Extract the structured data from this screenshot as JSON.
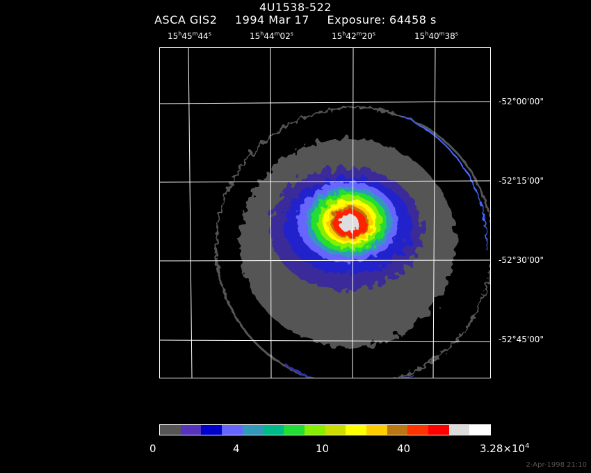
{
  "header": {
    "source": "4U1538-522",
    "instrument": "ASCA GIS2",
    "date": "1994 Mar 17",
    "exposure": "Exposure: 64458 s"
  },
  "ra_labels": [
    {
      "h": "15",
      "m": "45",
      "s": "44"
    },
    {
      "h": "15",
      "m": "44",
      "s": "02"
    },
    {
      "h": "15",
      "m": "42",
      "s": "20"
    },
    {
      "h": "15",
      "m": "40",
      "s": "38"
    }
  ],
  "dec_labels": [
    "-52°00'00\"",
    "-52°15'00\"",
    "-52°30'00\"",
    "-52°45'00\""
  ],
  "colorbar": {
    "colors": [
      "#555555",
      "#5533bb",
      "#0000cc",
      "#6666ff",
      "#3399bb",
      "#00bb88",
      "#22dd33",
      "#88ee00",
      "#ccdd00",
      "#ffff00",
      "#ffcc00",
      "#bb7711",
      "#ff3300",
      "#ff0000",
      "#dddddd",
      "#ffffff"
    ],
    "labels": {
      "l0": "0",
      "l1": "4",
      "l2": "10",
      "l3": "40",
      "l4_mant": "3.28×10",
      "l4_exp": "4"
    }
  },
  "timestamp": "2-Apr-1998 21:10"
}
